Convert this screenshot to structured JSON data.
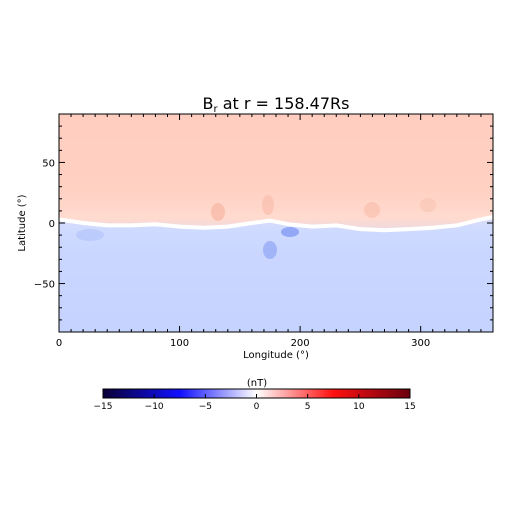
{
  "chart_data": {
    "type": "heatmap",
    "title_main": "B",
    "title_sub": "r",
    "title_rest": " at r = 158.47Rs",
    "xlabel": "Longitude (°)",
    "ylabel": "Latitude (°)",
    "xlim": [
      0,
      360
    ],
    "ylim": [
      -90,
      90
    ],
    "x_ticks": [
      0,
      100,
      200,
      300
    ],
    "y_ticks": [
      -50,
      0,
      50
    ],
    "x_tick_labels": [
      "0",
      "100",
      "200",
      "300"
    ],
    "y_tick_labels": [
      "−50",
      "0",
      "50"
    ],
    "field_summary": {
      "north_value_nT": 2.6,
      "south_value_nT": -2.2,
      "neutral_line": {
        "longitude": [
          0,
          20,
          40,
          60,
          80,
          100,
          120,
          140,
          160,
          175,
          190,
          210,
          230,
          250,
          270,
          290,
          310,
          330,
          350,
          360
        ],
        "latitude": [
          3,
          0,
          -2,
          -2,
          -1,
          -3,
          -4,
          -3,
          0,
          2,
          -1,
          -3,
          -2,
          -5,
          -6,
          -5,
          -4,
          -2,
          3,
          5
        ]
      }
    },
    "colorbar": {
      "label": "(nT)",
      "range": [
        -15,
        15
      ],
      "ticks": [
        -15,
        -10,
        -5,
        0,
        5,
        10,
        15
      ],
      "tick_labels": [
        "−15",
        "−10",
        "−5",
        "0",
        "5",
        "10",
        "15"
      ],
      "colors": [
        "#0a0036",
        "#0000ff",
        "#ffffff",
        "#ff0000",
        "#6a0010"
      ]
    }
  }
}
